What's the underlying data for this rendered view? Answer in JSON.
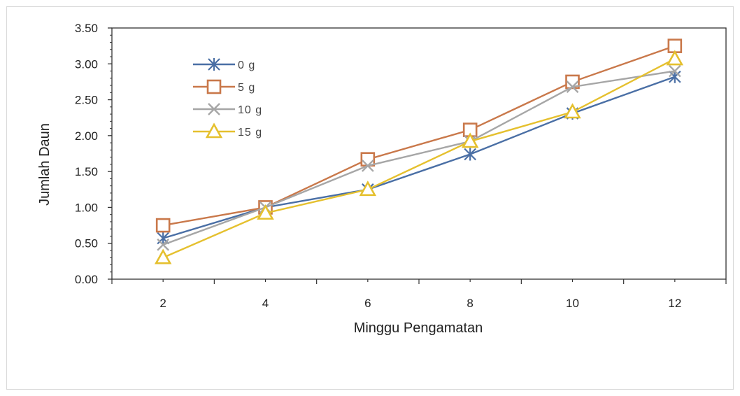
{
  "chart_data": {
    "type": "line",
    "title": "",
    "xlabel": "Minggu Pengamatan",
    "ylabel": "Jumlah Daun",
    "x": [
      2,
      4,
      6,
      8,
      10,
      12
    ],
    "x_tick_labels": [
      "2",
      "4",
      "6",
      "8",
      "10",
      "12"
    ],
    "y_tick_labels": [
      "0.00",
      "0.50",
      "1.00",
      "1.50",
      "2.00",
      "2.50",
      "3.00",
      "3.50"
    ],
    "ylim": [
      0,
      3.5
    ],
    "y_step": 0.5,
    "grid": false,
    "legend_position": "top-left",
    "series": [
      {
        "name": "0 g",
        "color": "#4a6fa5",
        "marker": "asterisk",
        "values": [
          0.57,
          1.0,
          1.25,
          1.74,
          2.31,
          2.82
        ]
      },
      {
        "name": "5 g",
        "color": "#c9784a",
        "marker": "square",
        "values": [
          0.75,
          1.0,
          1.67,
          2.08,
          2.75,
          3.25
        ]
      },
      {
        "name": "10 g",
        "color": "#a6a6a6",
        "marker": "x",
        "values": [
          0.48,
          1.0,
          1.58,
          1.92,
          2.68,
          2.9
        ]
      },
      {
        "name": "15 g",
        "color": "#e5c02e",
        "marker": "triangle",
        "values": [
          0.3,
          0.92,
          1.25,
          1.92,
          2.33,
          3.07
        ]
      }
    ]
  }
}
